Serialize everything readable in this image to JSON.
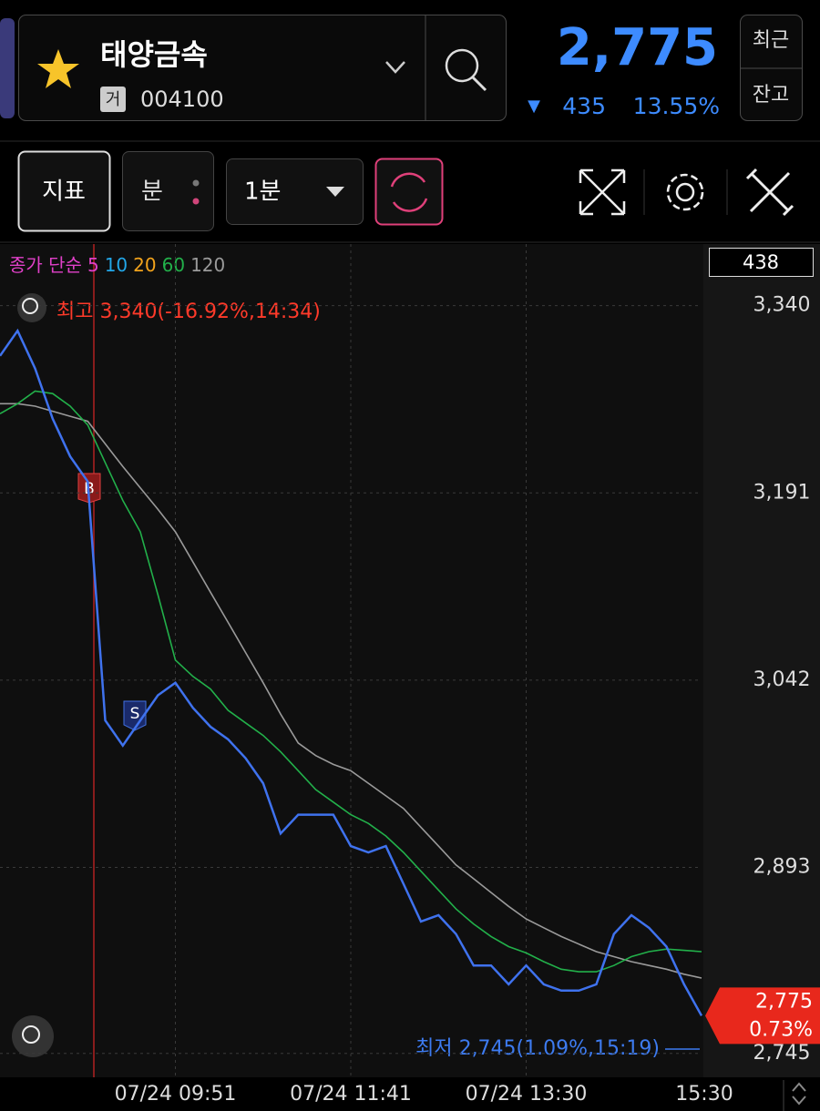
{
  "header": {
    "name": "태양금속",
    "market": "거",
    "code": "004100",
    "price": "2,775",
    "change_sign": "▼",
    "change": "435",
    "change_rate": "13.55%",
    "buttons": [
      "최근",
      "잔고"
    ]
  },
  "toolbar": {
    "indicator": "지표",
    "period_type": "분",
    "interval": "1분"
  },
  "chart_data": {
    "type": "line",
    "indicator_labels": [
      {
        "text": "종가 단순",
        "color": "#e040c8"
      },
      {
        "text": "5",
        "color": "#e040c8"
      },
      {
        "text": "10",
        "color": "#22a6e8"
      },
      {
        "text": "20",
        "color": "#f2a31c"
      },
      {
        "text": "60",
        "color": "#22b04a"
      },
      {
        "text": "120",
        "color": "#9a9a9a"
      }
    ],
    "categories": [
      null,
      null,
      null,
      null,
      null,
      null,
      null,
      null,
      null,
      null,
      "07/24 09:51",
      null,
      null,
      null,
      null,
      null,
      null,
      null,
      null,
      null,
      "07/24 11:41",
      null,
      null,
      null,
      null,
      null,
      null,
      null,
      null,
      null,
      "07/24 13:30",
      null,
      null,
      null,
      null,
      null,
      null,
      null,
      null,
      null,
      "15:30"
    ],
    "series": [
      {
        "color": "#3f72ee",
        "values": [
          3300,
          3320,
          3290,
          3250,
          3220,
          3200,
          3010,
          2990,
          3010,
          3030,
          3040,
          3020,
          3005,
          2995,
          2980,
          2960,
          2920,
          2935,
          2935,
          2935,
          2910,
          2905,
          2910,
          2880,
          2850,
          2855,
          2840,
          2815,
          2815,
          2800,
          2815,
          2800,
          2795,
          2795,
          2800,
          2840,
          2855,
          2845,
          2830,
          2800,
          2775
        ]
      },
      {
        "color": "#22b04a",
        "values": [
          3254,
          3262,
          3272,
          3270,
          3260,
          3245,
          3215,
          3185,
          3160,
          3110,
          3058,
          3045,
          3035,
          3018,
          3008,
          2998,
          2985,
          2970,
          2955,
          2945,
          2935,
          2928,
          2918,
          2905,
          2890,
          2875,
          2860,
          2848,
          2838,
          2830,
          2825,
          2818,
          2812,
          2810,
          2810,
          2815,
          2822,
          2826,
          2828,
          2827,
          2826
        ]
      },
      {
        "color": "#9a9a9a",
        "values": [
          3262,
          3262,
          3260,
          3256,
          3252,
          3248,
          3230,
          3212,
          3195,
          3178,
          3160,
          3136,
          3112,
          3088,
          3064,
          3040,
          3015,
          2992,
          2982,
          2975,
          2970,
          2960,
          2950,
          2940,
          2925,
          2910,
          2895,
          2884,
          2873,
          2862,
          2852,
          2845,
          2838,
          2832,
          2826,
          2822,
          2818,
          2815,
          2812,
          2808,
          2805
        ]
      }
    ],
    "ylim": [
      2726,
      3389
    ],
    "yticks": [
      {
        "value": 3340,
        "label": "3,340"
      },
      {
        "value": 3191,
        "label": "3,191"
      },
      {
        "value": 3042,
        "label": "3,042"
      },
      {
        "value": 2893,
        "label": "2,893"
      },
      {
        "value": 2745,
        "label": "2,745"
      }
    ],
    "grid": true,
    "high_label": "최고 3,340(-16.92%,14:34)",
    "low_label": "최저 2,745(1.09%,15:19)",
    "current_price": "2,775",
    "current_rate": "0.73%",
    "volume_box": "438",
    "buy_marker": "B",
    "sell_marker": "S"
  }
}
